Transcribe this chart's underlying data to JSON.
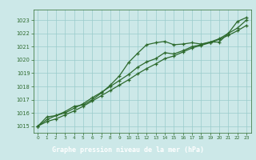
{
  "title": "Graphe pression niveau de la mer (hPa)",
  "bg_color": "#cce8e8",
  "plot_bg_color": "#cce8e8",
  "grid_color": "#99cccc",
  "line_color": "#2d6a2d",
  "title_bg": "#2d6a2d",
  "title_fg": "#ffffff",
  "xlim": [
    -0.5,
    23.5
  ],
  "ylim": [
    1014.5,
    1023.8
  ],
  "yticks": [
    1015,
    1016,
    1017,
    1018,
    1019,
    1020,
    1021,
    1022,
    1023
  ],
  "xticks": [
    0,
    1,
    2,
    3,
    4,
    5,
    6,
    7,
    8,
    9,
    10,
    11,
    12,
    13,
    14,
    15,
    16,
    17,
    18,
    19,
    20,
    21,
    22,
    23
  ],
  "series1_x": [
    0,
    1,
    2,
    3,
    4,
    5,
    6,
    7,
    8,
    9,
    10,
    11,
    12,
    13,
    14,
    15,
    16,
    17,
    18,
    19,
    20,
    21,
    22,
    23
  ],
  "series1_y": [
    1015.0,
    1015.7,
    1015.8,
    1016.1,
    1016.5,
    1016.6,
    1017.0,
    1017.5,
    1018.1,
    1018.8,
    1019.8,
    1020.5,
    1021.15,
    1021.3,
    1021.4,
    1021.15,
    1021.2,
    1021.3,
    1021.2,
    1021.35,
    1021.35,
    1022.0,
    1022.9,
    1023.2
  ],
  "series2_x": [
    0,
    1,
    2,
    3,
    4,
    5,
    6,
    7,
    8,
    9,
    10,
    11,
    12,
    13,
    14,
    15,
    16,
    17,
    18,
    19,
    20,
    21,
    22,
    23
  ],
  "series2_y": [
    1015.0,
    1015.5,
    1015.8,
    1016.0,
    1016.35,
    1016.7,
    1017.15,
    1017.55,
    1018.0,
    1018.45,
    1018.9,
    1019.45,
    1019.85,
    1020.1,
    1020.55,
    1020.45,
    1020.7,
    1021.0,
    1021.15,
    1021.35,
    1021.6,
    1022.0,
    1022.4,
    1023.0
  ],
  "series3_x": [
    0,
    1,
    2,
    3,
    4,
    5,
    6,
    7,
    8,
    9,
    10,
    11,
    12,
    13,
    14,
    15,
    16,
    17,
    18,
    19,
    20,
    21,
    22,
    23
  ],
  "series3_y": [
    1015.0,
    1015.35,
    1015.55,
    1015.85,
    1016.15,
    1016.5,
    1016.9,
    1017.3,
    1017.7,
    1018.1,
    1018.5,
    1018.95,
    1019.35,
    1019.7,
    1020.1,
    1020.3,
    1020.6,
    1020.9,
    1021.1,
    1021.3,
    1021.55,
    1021.85,
    1022.2,
    1022.6
  ]
}
